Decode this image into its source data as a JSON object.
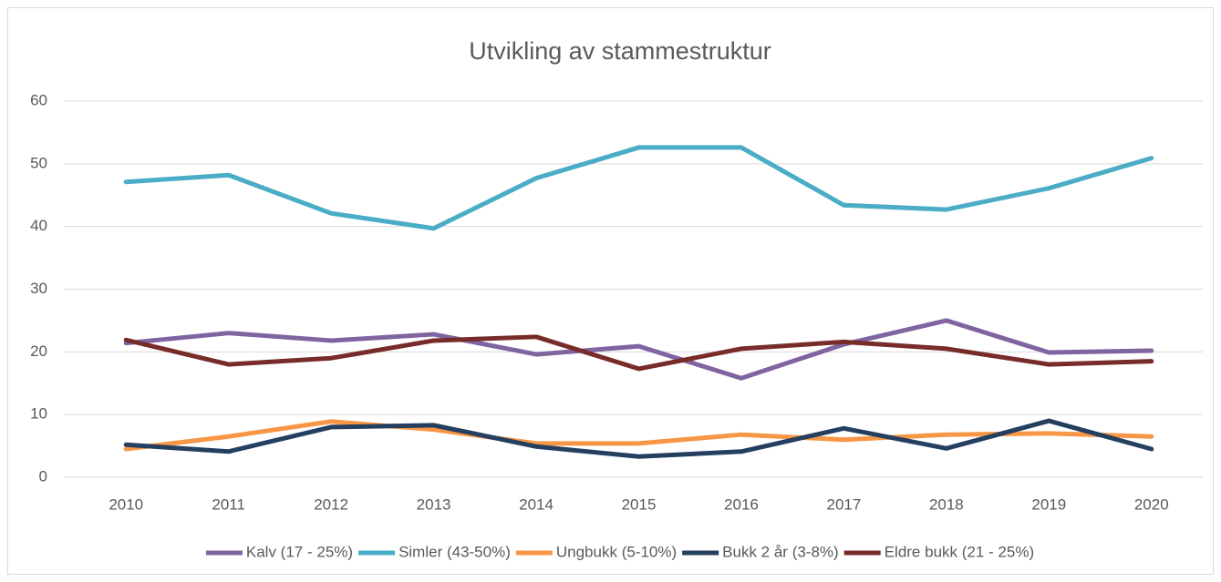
{
  "chart_data": {
    "type": "line",
    "title": "Utvikling av stammestruktur",
    "categories": [
      "2010",
      "2011",
      "2012",
      "2013",
      "2014",
      "2015",
      "2016",
      "2017",
      "2018",
      "2019",
      "2020"
    ],
    "series": [
      {
        "name": "Kalv (17 - 25%)",
        "color": "#8064a2",
        "values": [
          21.4,
          23.0,
          21.8,
          22.8,
          19.6,
          20.9,
          15.8,
          21.2,
          25.0,
          19.9,
          20.2
        ]
      },
      {
        "name": "Simler (43-50%)",
        "color": "#4bacc6",
        "values": [
          47.1,
          48.2,
          42.1,
          39.7,
          47.7,
          52.6,
          52.6,
          43.4,
          42.7,
          46.1,
          50.9
        ]
      },
      {
        "name": "Ungbukk (5-10%)",
        "color": "#f79646",
        "values": [
          4.5,
          6.5,
          8.9,
          7.6,
          5.4,
          5.4,
          6.8,
          6.0,
          6.8,
          7.0,
          6.5
        ]
      },
      {
        "name": "Bukk 2 år (3-8%)",
        "color": "#243f60",
        "values": [
          5.2,
          4.1,
          8.0,
          8.3,
          4.9,
          3.3,
          4.1,
          7.8,
          4.6,
          9.0,
          4.5
        ]
      },
      {
        "name": "Eldre bukk (21 - 25%)",
        "color": "#772c2a",
        "values": [
          21.9,
          18.0,
          19.0,
          21.8,
          22.4,
          17.3,
          20.5,
          21.6,
          20.5,
          18.0,
          18.5
        ]
      }
    ],
    "ylim": [
      0,
      60
    ],
    "yticks": [
      0,
      10,
      20,
      30,
      40,
      50,
      60
    ],
    "grid": true,
    "legend": "bottom"
  }
}
